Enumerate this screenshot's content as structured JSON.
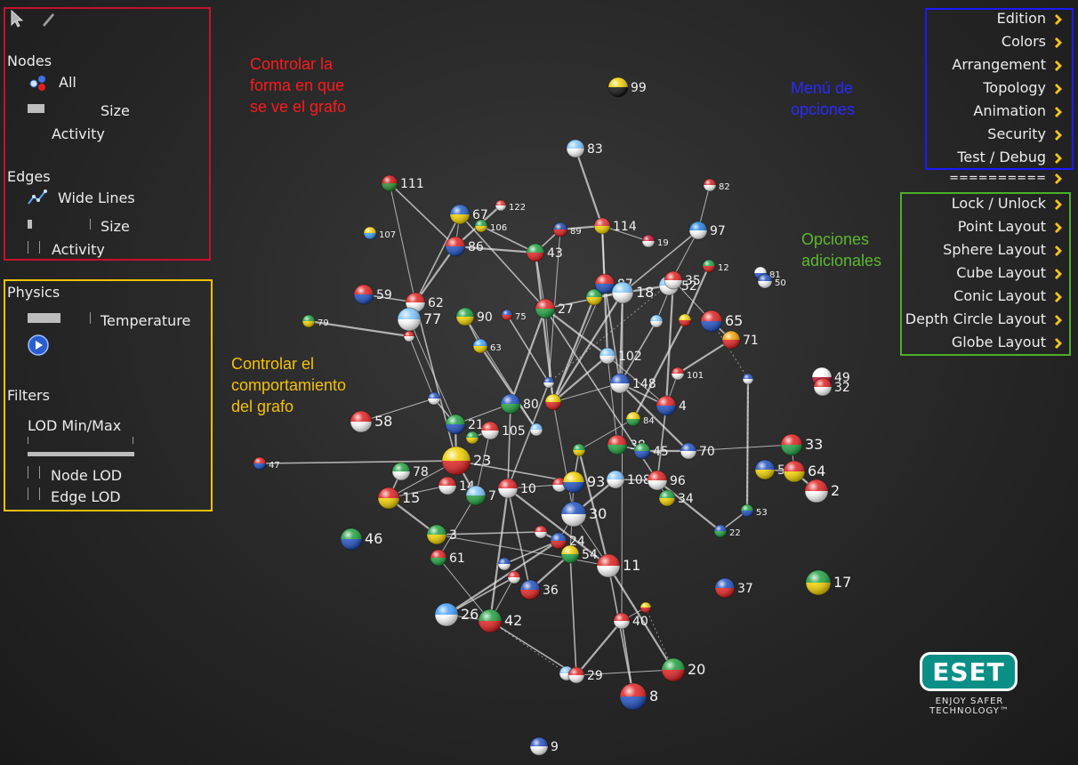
{
  "left_panel": {
    "nodes_header": "Nodes",
    "nodes_all": "All",
    "nodes_size": "Size",
    "nodes_activity": "Activity",
    "edges_header": "Edges",
    "edges_wide_lines": "Wide Lines",
    "edges_size": "Size",
    "edges_activity": "Activity",
    "physics_header": "Physics",
    "temperature": "Temperature",
    "filters_header": "Filters",
    "lod_minmax": "LOD Min/Max",
    "node_lod": "Node LOD",
    "edge_lod": "Edge LOD"
  },
  "annotations": {
    "red": [
      "Controlar la",
      "forma en que",
      "se ve el grafo"
    ],
    "yellow": [
      "Controlar el",
      "comportamiento",
      "del grafo"
    ],
    "blue": [
      "Menú de",
      "opciones"
    ],
    "green": [
      "Opciones",
      "adicionales"
    ]
  },
  "menu": {
    "main": [
      "Edition",
      "Colors",
      "Arrangement",
      "Topology",
      "Animation",
      "Security",
      "Test / Debug"
    ],
    "separator": "==========",
    "extra": [
      "Lock / Unlock",
      "Point Layout",
      "Sphere Layout",
      "Cube Layout",
      "Conic Layout",
      "Depth Circle Layout",
      "Globe Layout"
    ]
  },
  "logo": {
    "brand": "ESET",
    "tagline1": "ENJOY SAFER",
    "tagline2": "TECHNOLOGY™"
  },
  "colors": {
    "red_box": "#c8102e",
    "yellow_box": "#f5c200",
    "blue_box": "#1a1aff",
    "green_box": "#4caf2a",
    "red_text": "#ff1a1a",
    "yellow_text": "#f5c200",
    "blue_text": "#2a2aff",
    "green_text": "#5cb82e"
  },
  "graph": {
    "nodes": [
      {
        "label": "99",
        "c": [
          "#f5d000",
          "#111"
        ]
      },
      {
        "label": "83",
        "c": [
          "#7fc6ff",
          "#fff"
        ]
      },
      {
        "label": "111",
        "c": [
          "#d01010",
          "#2a8a2a"
        ]
      },
      {
        "label": "67",
        "c": [
          "#2060c0",
          "#f0d000"
        ]
      },
      {
        "label": "122",
        "c": [
          "#e03030",
          "#fff"
        ]
      },
      {
        "label": "106",
        "c": [
          "#20a040",
          "#f0d000"
        ]
      },
      {
        "label": "89",
        "c": [
          "#2040a0",
          "#e02020"
        ]
      },
      {
        "label": "114",
        "c": [
          "#e03030",
          "#f0d000"
        ]
      },
      {
        "label": "19",
        "c": [
          "#c01030",
          "#fff"
        ]
      },
      {
        "label": "97",
        "c": [
          "#2080e0",
          "#fff"
        ]
      },
      {
        "label": "82",
        "c": [
          "#d02020",
          "#fff"
        ]
      },
      {
        "label": "107",
        "c": [
          "#f0d000",
          "#40a0ff"
        ]
      },
      {
        "label": "86",
        "c": [
          "#e02020",
          "#2050c0"
        ]
      },
      {
        "label": "43",
        "c": [
          "#20a040",
          "#e02020"
        ]
      },
      {
        "label": "12",
        "c": [
          "#20a040",
          "#e02020"
        ]
      },
      {
        "label": "81",
        "c": [
          "#fff",
          "#2050c0"
        ]
      },
      {
        "label": "50",
        "c": [
          "#2050c0",
          "#fff"
        ]
      },
      {
        "label": "59",
        "c": [
          "#e02020",
          "#2050c0"
        ]
      },
      {
        "label": "62",
        "c": [
          "#e02020",
          "#fff"
        ]
      },
      {
        "label": "87",
        "c": [
          "#e02020",
          "#2050c0"
        ]
      },
      {
        "label": "18",
        "c": [
          "#7fc6ff",
          "#fff"
        ]
      },
      {
        "label": "52",
        "c": [
          "#7fc6ff",
          "#fff"
        ]
      },
      {
        "label": "35",
        "c": [
          "#e02020",
          "#fff"
        ]
      },
      {
        "label": "79",
        "c": [
          "#20a040",
          "#f0d000"
        ]
      },
      {
        "label": "77",
        "c": [
          "#7fc6ff",
          "#fff"
        ]
      },
      {
        "label": "90",
        "c": [
          "#20a040",
          "#f0d000"
        ]
      },
      {
        "label": "75",
        "c": [
          "#2050c0",
          "#e02020"
        ]
      },
      {
        "label": "27",
        "c": [
          "#e02020",
          "#20a040"
        ]
      },
      {
        "label": "65",
        "c": [
          "#e02020",
          "#2050c0"
        ]
      },
      {
        "label": "71",
        "c": [
          "#f0a000",
          "#e02020"
        ]
      },
      {
        "label": "63",
        "c": [
          "#40a0ff",
          "#f0d000"
        ]
      },
      {
        "label": "102",
        "c": [
          "#7fc6ff",
          "#fff"
        ]
      },
      {
        "label": "101",
        "c": [
          "#e02020",
          "#fff"
        ]
      },
      {
        "label": "49",
        "c": [
          "#fff",
          "#c01030"
        ]
      },
      {
        "label": "32",
        "c": [
          "#e02020",
          "#fff"
        ]
      },
      {
        "label": "148",
        "c": [
          "#2050c0",
          "#fff"
        ]
      },
      {
        "label": "4",
        "c": [
          "#e02020",
          "#2050c0"
        ]
      },
      {
        "label": "80",
        "c": [
          "#2050c0",
          "#20a040"
        ]
      },
      {
        "label": "58",
        "c": [
          "#e02020",
          "#fff"
        ]
      },
      {
        "label": "21",
        "c": [
          "#20a040",
          "#2050c0"
        ]
      },
      {
        "label": "105",
        "c": [
          "#e02020",
          "#fff"
        ]
      },
      {
        "label": "84",
        "c": [
          "#f0d000",
          "#20a040"
        ]
      },
      {
        "label": "38",
        "c": [
          "#e02020",
          "#20a040"
        ]
      },
      {
        "label": "45",
        "c": [
          "#20a040",
          "#2050c0"
        ]
      },
      {
        "label": "70",
        "c": [
          "#2050c0",
          "#fff"
        ]
      },
      {
        "label": "33",
        "c": [
          "#e02020",
          "#20a040"
        ]
      },
      {
        "label": "47",
        "c": [
          "#e02020",
          "#2050c0"
        ]
      },
      {
        "label": "23",
        "c": [
          "#f0d000",
          "#e02020"
        ]
      },
      {
        "label": "78",
        "c": [
          "#20a040",
          "#fff"
        ]
      },
      {
        "label": "14",
        "c": [
          "#e02020",
          "#fff"
        ]
      },
      {
        "label": "7",
        "c": [
          "#7fc6ff",
          "#20a040"
        ]
      },
      {
        "label": "10",
        "c": [
          "#e02020",
          "#fff"
        ]
      },
      {
        "label": "93",
        "c": [
          "#f0d000",
          "#2050c0"
        ]
      },
      {
        "label": "108",
        "c": [
          "#7fc6ff",
          "#fff"
        ]
      },
      {
        "label": "96",
        "c": [
          "#e02020",
          "#fff"
        ]
      },
      {
        "label": "34",
        "c": [
          "#20a040",
          "#f0d000"
        ]
      },
      {
        "label": "5",
        "c": [
          "#2050c0",
          "#f0d000"
        ]
      },
      {
        "label": "64",
        "c": [
          "#e02020",
          "#f0d000"
        ]
      },
      {
        "label": "2",
        "c": [
          "#e02020",
          "#fff"
        ]
      },
      {
        "label": "15",
        "c": [
          "#e02020",
          "#f0d000"
        ]
      },
      {
        "label": "30",
        "c": [
          "#2050c0",
          "#fff"
        ]
      },
      {
        "label": "53",
        "c": [
          "#20a040",
          "#2050c0"
        ]
      },
      {
        "label": "22",
        "c": [
          "#2050c0",
          "#20a040"
        ]
      },
      {
        "label": "46",
        "c": [
          "#20a040",
          "#2050c0"
        ]
      },
      {
        "label": "3",
        "c": [
          "#20a040",
          "#f0d000"
        ]
      },
      {
        "label": "24",
        "c": [
          "#2050c0",
          "#e02020"
        ]
      },
      {
        "label": "54",
        "c": [
          "#f0d000",
          "#20a040"
        ]
      },
      {
        "label": "61",
        "c": [
          "#e02020",
          "#20a040"
        ]
      },
      {
        "label": "11",
        "c": [
          "#e02020",
          "#fff"
        ]
      },
      {
        "label": "36",
        "c": [
          "#2050c0",
          "#e02020"
        ]
      },
      {
        "label": "37",
        "c": [
          "#2050c0",
          "#e02020"
        ]
      },
      {
        "label": "17",
        "c": [
          "#20a040",
          "#f0d000"
        ]
      },
      {
        "label": "26",
        "c": [
          "#40a0ff",
          "#fff"
        ]
      },
      {
        "label": "42",
        "c": [
          "#20a040",
          "#e02020"
        ]
      },
      {
        "label": "40",
        "c": [
          "#e02020",
          "#fff"
        ]
      },
      {
        "label": "29",
        "c": [
          "#e02020",
          "#fff"
        ]
      },
      {
        "label": "20",
        "c": [
          "#20a040",
          "#e02020"
        ]
      },
      {
        "label": "8",
        "c": [
          "#e02020",
          "#2050c0"
        ]
      },
      {
        "label": "9",
        "c": [
          "#2050c0",
          "#fff"
        ]
      }
    ]
  }
}
